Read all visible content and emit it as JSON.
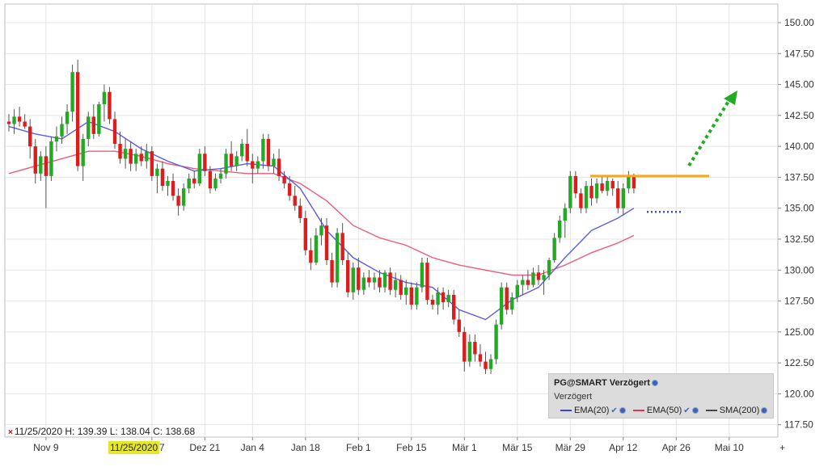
{
  "chart_data": {
    "type": "candlestick",
    "ylim": [
      116.5,
      151.5
    ],
    "yticks": [
      "150.00",
      "147.50",
      "145.00",
      "142.50",
      "140.00",
      "137.50",
      "135.00",
      "132.50",
      "130.00",
      "127.50",
      "125.00",
      "122.50",
      "120.00",
      "117.50"
    ],
    "ytick_values": [
      150,
      147.5,
      145,
      142.5,
      140,
      137.5,
      135,
      132.5,
      130,
      127.5,
      125,
      122.5,
      120,
      117.5
    ],
    "xtick_labels": [
      "Nov 9",
      "Dez 7",
      "Dez 21",
      "Jan 4",
      "Jan 18",
      "Feb 1",
      "Feb 15",
      "Mär 1",
      "Mär 15",
      "Mär 29",
      "Apr 12",
      "Apr 26",
      "Mai 10"
    ],
    "xtick_index": [
      7,
      27,
      37,
      46,
      56,
      66,
      76,
      86,
      96,
      106,
      116,
      126,
      136
    ],
    "candles": [
      [
        142.0,
        142.6,
        141.2,
        141.8
      ],
      [
        141.8,
        143.0,
        141.0,
        142.4
      ],
      [
        142.4,
        143.2,
        141.6,
        142.0
      ],
      [
        142.0,
        142.6,
        141.4,
        141.6
      ],
      [
        141.6,
        142.2,
        139.0,
        140.0
      ],
      [
        140.0,
        140.6,
        137.0,
        137.8
      ],
      [
        137.8,
        139.6,
        137.2,
        139.2
      ],
      [
        139.2,
        140.0,
        135.0,
        137.6
      ],
      [
        137.6,
        140.8,
        137.2,
        140.4
      ],
      [
        140.4,
        141.6,
        139.6,
        140.8
      ],
      [
        140.8,
        142.4,
        140.2,
        141.8
      ],
      [
        141.8,
        143.4,
        141.0,
        142.8
      ],
      [
        142.8,
        146.6,
        142.0,
        146.0
      ],
      [
        146.0,
        147.0,
        138.0,
        138.4
      ],
      [
        138.4,
        141.0,
        137.2,
        140.6
      ],
      [
        140.6,
        142.8,
        140.0,
        142.4
      ],
      [
        142.4,
        143.4,
        140.6,
        141.0
      ],
      [
        141.0,
        143.6,
        140.8,
        143.4
      ],
      [
        143.4,
        145.0,
        142.0,
        144.4
      ],
      [
        144.4,
        144.8,
        141.8,
        142.2
      ],
      [
        142.2,
        142.8,
        139.8,
        140.2
      ],
      [
        140.2,
        141.2,
        138.6,
        139.0
      ],
      [
        139.0,
        140.6,
        138.2,
        139.8
      ],
      [
        139.8,
        140.4,
        138.0,
        138.6
      ],
      [
        138.6,
        139.8,
        138.0,
        139.4
      ],
      [
        139.4,
        140.0,
        138.4,
        138.8
      ],
      [
        138.8,
        140.2,
        138.2,
        139.6
      ],
      [
        139.6,
        140.0,
        137.2,
        137.6
      ],
      [
        137.6,
        138.6,
        136.2,
        138.2
      ],
      [
        138.2,
        138.8,
        136.4,
        136.8
      ],
      [
        136.8,
        137.6,
        136.0,
        137.2
      ],
      [
        137.2,
        137.8,
        135.6,
        136.0
      ],
      [
        136.0,
        136.6,
        134.4,
        135.2
      ],
      [
        135.2,
        137.0,
        134.8,
        136.6
      ],
      [
        136.6,
        137.8,
        136.2,
        137.4
      ],
      [
        137.4,
        138.0,
        136.6,
        137.0
      ],
      [
        137.0,
        139.8,
        136.8,
        139.4
      ],
      [
        139.4,
        140.0,
        137.6,
        138.0
      ],
      [
        138.0,
        138.4,
        136.2,
        136.6
      ],
      [
        136.6,
        137.8,
        136.4,
        137.4
      ],
      [
        137.4,
        138.2,
        137.0,
        137.8
      ],
      [
        137.8,
        139.8,
        137.4,
        139.4
      ],
      [
        139.4,
        140.4,
        138.0,
        138.4
      ],
      [
        138.4,
        139.6,
        138.0,
        139.2
      ],
      [
        139.2,
        140.6,
        138.8,
        140.2
      ],
      [
        140.2,
        141.4,
        138.4,
        138.8
      ],
      [
        138.8,
        139.4,
        137.0,
        138.2
      ],
      [
        138.2,
        139.2,
        137.8,
        138.8
      ],
      [
        138.8,
        141.0,
        138.2,
        140.6
      ],
      [
        140.6,
        141.0,
        138.0,
        138.4
      ],
      [
        138.4,
        139.4,
        137.8,
        139.0
      ],
      [
        139.0,
        139.8,
        137.2,
        137.6
      ],
      [
        137.6,
        138.0,
        136.6,
        137.0
      ],
      [
        137.0,
        137.6,
        135.6,
        136.0
      ],
      [
        136.0,
        136.8,
        134.8,
        135.2
      ],
      [
        135.2,
        135.8,
        133.8,
        134.2
      ],
      [
        134.2,
        134.8,
        131.2,
        131.6
      ],
      [
        131.6,
        132.6,
        130.0,
        130.6
      ],
      [
        130.6,
        133.4,
        130.4,
        132.8
      ],
      [
        132.8,
        134.2,
        132.0,
        133.6
      ],
      [
        133.6,
        134.2,
        130.4,
        130.8
      ],
      [
        130.8,
        131.4,
        128.6,
        129.0
      ],
      [
        129.0,
        133.4,
        128.6,
        133.0
      ],
      [
        133.0,
        133.8,
        130.4,
        130.8
      ],
      [
        130.8,
        131.4,
        127.8,
        128.2
      ],
      [
        128.2,
        130.6,
        127.6,
        130.2
      ],
      [
        130.2,
        131.0,
        128.0,
        128.4
      ],
      [
        128.4,
        129.8,
        128.0,
        129.4
      ],
      [
        129.4,
        130.0,
        128.6,
        129.0
      ],
      [
        129.0,
        129.8,
        128.4,
        129.4
      ],
      [
        129.4,
        130.0,
        128.2,
        128.6
      ],
      [
        128.6,
        130.0,
        128.2,
        129.8
      ],
      [
        129.8,
        130.2,
        128.0,
        128.4
      ],
      [
        128.4,
        129.8,
        127.8,
        129.2
      ],
      [
        129.2,
        129.6,
        127.6,
        128.0
      ],
      [
        128.0,
        129.2,
        127.2,
        128.6
      ],
      [
        128.6,
        129.0,
        126.8,
        127.2
      ],
      [
        127.2,
        129.0,
        126.8,
        128.6
      ],
      [
        128.6,
        131.0,
        128.2,
        130.6
      ],
      [
        130.6,
        131.0,
        127.2,
        127.6
      ],
      [
        127.6,
        128.0,
        126.8,
        127.2
      ],
      [
        127.2,
        128.6,
        126.4,
        128.2
      ],
      [
        128.2,
        128.6,
        126.8,
        127.4
      ],
      [
        127.4,
        128.4,
        127.0,
        128.0
      ],
      [
        128.0,
        128.4,
        125.6,
        126.0
      ],
      [
        126.0,
        126.8,
        124.6,
        125.0
      ],
      [
        125.0,
        125.4,
        121.8,
        122.6
      ],
      [
        122.6,
        124.8,
        122.2,
        124.2
      ],
      [
        124.2,
        124.8,
        122.6,
        123.2
      ],
      [
        123.2,
        124.0,
        122.2,
        122.6
      ],
      [
        122.6,
        123.4,
        121.6,
        122.0
      ],
      [
        122.0,
        123.2,
        121.6,
        122.8
      ],
      [
        122.8,
        126.0,
        122.4,
        125.6
      ],
      [
        125.6,
        129.0,
        125.2,
        128.6
      ],
      [
        128.6,
        129.0,
        126.4,
        126.8
      ],
      [
        126.8,
        128.2,
        126.4,
        127.8
      ],
      [
        127.8,
        129.2,
        127.4,
        128.8
      ],
      [
        128.8,
        129.6,
        128.0,
        129.2
      ],
      [
        129.2,
        130.0,
        128.4,
        128.8
      ],
      [
        128.8,
        130.2,
        128.6,
        129.8
      ],
      [
        129.8,
        130.4,
        128.8,
        129.2
      ],
      [
        129.2,
        130.0,
        128.0,
        129.6
      ],
      [
        129.6,
        131.0,
        129.2,
        130.8
      ],
      [
        130.8,
        133.0,
        130.6,
        132.6
      ],
      [
        132.6,
        134.4,
        132.2,
        134.0
      ],
      [
        134.0,
        135.4,
        132.6,
        135.0
      ],
      [
        135.0,
        138.0,
        134.6,
        137.6
      ],
      [
        137.6,
        138.0,
        135.8,
        136.2
      ],
      [
        136.2,
        136.6,
        134.6,
        135.0
      ],
      [
        135.0,
        137.2,
        134.6,
        136.8
      ],
      [
        136.8,
        137.4,
        135.2,
        135.8
      ],
      [
        135.8,
        137.4,
        135.4,
        137.0
      ],
      [
        137.0,
        137.6,
        136.2,
        136.4
      ],
      [
        136.4,
        137.6,
        136.0,
        137.2
      ],
      [
        137.2,
        137.4,
        136.0,
        136.6
      ],
      [
        136.6,
        137.2,
        134.6,
        135.0
      ],
      [
        135.0,
        137.0,
        134.4,
        136.6
      ],
      [
        136.6,
        138.0,
        136.2,
        137.6
      ],
      [
        137.6,
        137.8,
        136.2,
        136.6
      ]
    ],
    "x_first": 0,
    "ema20": [
      [
        0,
        141.6
      ],
      [
        5,
        141.0
      ],
      [
        10,
        140.6
      ],
      [
        15,
        142.0
      ],
      [
        20,
        141.2
      ],
      [
        25,
        139.8
      ],
      [
        30,
        138.8
      ],
      [
        35,
        138.0
      ],
      [
        40,
        138.2
      ],
      [
        45,
        138.6
      ],
      [
        50,
        138.4
      ],
      [
        55,
        136.6
      ],
      [
        60,
        133.2
      ],
      [
        65,
        131.0
      ],
      [
        70,
        129.8
      ],
      [
        75,
        129.0
      ],
      [
        80,
        128.6
      ],
      [
        85,
        126.8
      ],
      [
        90,
        126.0
      ],
      [
        95,
        127.6
      ],
      [
        100,
        128.6
      ],
      [
        105,
        131.0
      ],
      [
        110,
        133.2
      ],
      [
        115,
        134.2
      ],
      [
        118,
        135.0
      ]
    ],
    "ema50": [
      [
        0,
        137.8
      ],
      [
        5,
        138.4
      ],
      [
        10,
        139.0
      ],
      [
        15,
        139.6
      ],
      [
        20,
        139.6
      ],
      [
        25,
        139.2
      ],
      [
        30,
        138.6
      ],
      [
        35,
        138.2
      ],
      [
        40,
        138.0
      ],
      [
        45,
        137.8
      ],
      [
        50,
        137.8
      ],
      [
        55,
        137.0
      ],
      [
        60,
        135.6
      ],
      [
        65,
        133.6
      ],
      [
        70,
        132.6
      ],
      [
        75,
        132.0
      ],
      [
        80,
        131.0
      ],
      [
        85,
        130.4
      ],
      [
        90,
        130.0
      ],
      [
        95,
        129.6
      ],
      [
        100,
        129.6
      ],
      [
        105,
        130.4
      ],
      [
        110,
        131.4
      ],
      [
        115,
        132.2
      ],
      [
        118,
        132.8
      ]
    ],
    "resistance": 137.6,
    "support": 134.7,
    "annotations": []
  },
  "legend": {
    "title": "PG@SMART Verzögert",
    "subtitle": "Verzögert",
    "items": [
      {
        "label": "EMA(20)",
        "color": "#4040e0"
      },
      {
        "label": "EMA(50)",
        "color": "#e83050"
      },
      {
        "label": "SMA(200)",
        "color": "#444444"
      }
    ]
  },
  "ohlc_readout": {
    "date": "11/25/2020",
    "text": "H: 139.39  L: 138.04  C: 138.68"
  },
  "cursor_date": "11/25/2020",
  "colors": {
    "up": "#22aa22",
    "down": "#dd1c1c",
    "resistance": "#f5a623",
    "arrow": "#22aa22",
    "support": "#3a4fd0"
  }
}
